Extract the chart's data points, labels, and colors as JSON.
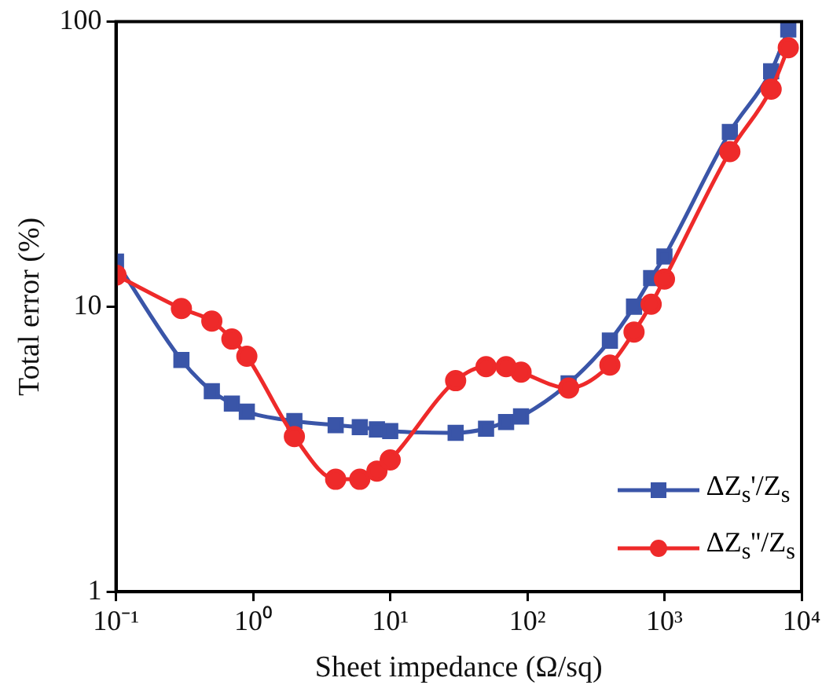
{
  "chart_data": {
    "type": "line",
    "xlabel": "Sheet impedance (Ω/sq)",
    "ylabel": "Total error (%)",
    "log": "xy",
    "grid": false,
    "legend": "bottom right",
    "line_style": "solid",
    "xlim": [
      0.1,
      10000
    ],
    "ylim": [
      1,
      100
    ],
    "xticks": [
      {
        "value": 0.1,
        "label": "10⁻¹"
      },
      {
        "value": 1,
        "label": "10⁰"
      },
      {
        "value": 10,
        "label": "10¹"
      },
      {
        "value": 100,
        "label": "10²"
      },
      {
        "value": 1000,
        "label": "10³"
      },
      {
        "value": 10000,
        "label": "10⁴"
      }
    ],
    "yticks": [
      1,
      10,
      100
    ],
    "series": [
      {
        "name": "ΔZ$_{s}$'/Z$_{s}$",
        "color": "#3a55a8",
        "marker": "square",
        "x": [
          0.1,
          0.3,
          0.5,
          0.7,
          0.9,
          2,
          4,
          6,
          8,
          10,
          30,
          50,
          70,
          90,
          200,
          400,
          600,
          800,
          1000,
          3000,
          6000,
          8000
        ],
        "values": [
          14.4,
          6.5,
          5.05,
          4.57,
          4.28,
          3.97,
          3.84,
          3.78,
          3.71,
          3.66,
          3.61,
          3.73,
          3.94,
          4.12,
          5.38,
          7.6,
          10.0,
          12.6,
          15.0,
          41,
          67,
          94
        ]
      },
      {
        "name": "ΔZ$_{s}$''/Z$_{s}$",
        "color": "#ee2a2a",
        "marker": "circle",
        "x": [
          0.1,
          0.3,
          0.5,
          0.7,
          0.9,
          2,
          4,
          6,
          8,
          10,
          30,
          50,
          70,
          90,
          200,
          400,
          600,
          800,
          1000,
          3000,
          6000,
          8000
        ],
        "values": [
          12.9,
          9.85,
          8.9,
          7.7,
          6.7,
          3.5,
          2.48,
          2.48,
          2.65,
          2.9,
          5.5,
          6.16,
          6.16,
          5.89,
          5.18,
          6.24,
          8.15,
          10.2,
          12.5,
          35,
          58,
          81
        ]
      }
    ]
  }
}
